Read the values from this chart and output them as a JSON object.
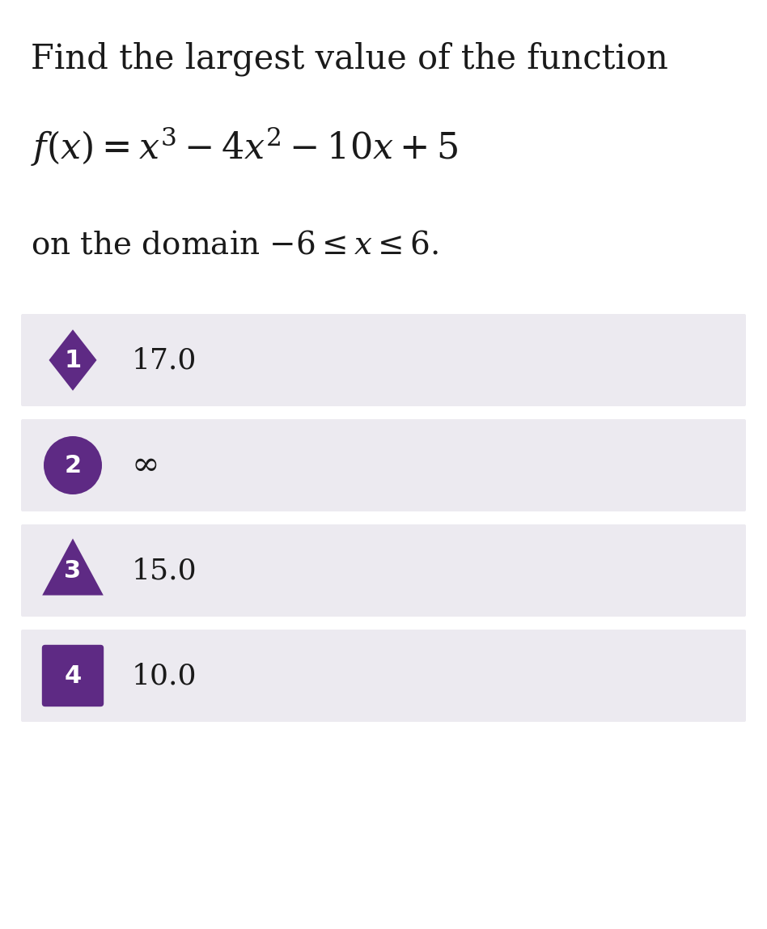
{
  "title_line1": "Find the largest value of the function",
  "options": [
    {
      "number": "1",
      "text": "17.0",
      "shape": "diamond"
    },
    {
      "number": "2",
      "text": "∞",
      "shape": "circle"
    },
    {
      "number": "3",
      "text": "15.0",
      "shape": "triangle"
    },
    {
      "number": "4",
      "text": "10.0",
      "shape": "square"
    }
  ],
  "bg_color": "#ffffff",
  "option_bg_color": "#eceaf0",
  "badge_color": "#5e2a84",
  "text_color": "#1a1a1a",
  "badge_text_color": "#ffffff",
  "title_fontsize": 30,
  "formula_fontsize": 32,
  "domain_fontsize": 28,
  "option_text_fontsize": 26,
  "badge_fontsize": 22,
  "inf_fontsize": 30
}
